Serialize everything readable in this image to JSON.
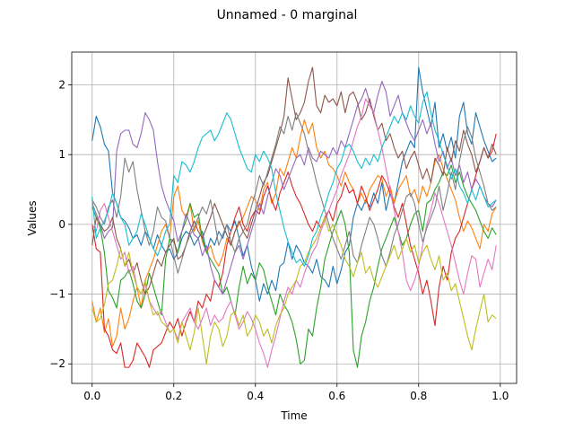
{
  "chart_data": {
    "type": "line",
    "title": "Unnamed - 0 marginal",
    "xlabel": "Time",
    "ylabel": "Values",
    "xlim": [
      -0.05,
      1.04
    ],
    "ylim": [
      -2.28,
      2.47
    ],
    "xticks": [
      0.0,
      0.2,
      0.4,
      0.6,
      0.8,
      1.0
    ],
    "xtick_labels": [
      "0.0",
      "0.2",
      "0.4",
      "0.6",
      "0.8",
      "1.0"
    ],
    "yticks": [
      -2,
      -1,
      0,
      1,
      2
    ],
    "ytick_labels": [
      "−2",
      "−1",
      "0",
      "1",
      "2"
    ],
    "grid": true,
    "x": [
      0.0,
      0.01,
      0.02,
      0.03,
      0.04,
      0.05,
      0.06,
      0.07,
      0.08,
      0.09,
      0.1,
      0.11,
      0.12,
      0.13,
      0.14,
      0.15,
      0.16,
      0.17,
      0.18,
      0.19,
      0.2,
      0.21,
      0.22,
      0.23,
      0.24,
      0.25,
      0.26,
      0.27,
      0.28,
      0.29,
      0.3,
      0.31,
      0.32,
      0.33,
      0.34,
      0.35,
      0.36,
      0.37,
      0.38,
      0.39,
      0.4,
      0.41,
      0.42,
      0.43,
      0.44,
      0.45,
      0.46,
      0.47,
      0.48,
      0.49,
      0.5,
      0.51,
      0.52,
      0.53,
      0.54,
      0.55,
      0.56,
      0.57,
      0.58,
      0.59,
      0.6,
      0.61,
      0.62,
      0.63,
      0.64,
      0.65,
      0.66,
      0.67,
      0.68,
      0.69,
      0.7,
      0.71,
      0.72,
      0.73,
      0.74,
      0.75,
      0.76,
      0.77,
      0.78,
      0.79,
      0.8,
      0.81,
      0.82,
      0.83,
      0.84,
      0.85,
      0.86,
      0.87,
      0.88,
      0.89,
      0.9,
      0.91,
      0.92,
      0.93,
      0.94,
      0.95,
      0.96,
      0.97,
      0.98,
      0.99
    ],
    "series": [
      {
        "color": "#1f77b4",
        "values": [
          1.2,
          1.55,
          1.4,
          1.15,
          1.05,
          0.45,
          0.3,
          0.1,
          0.05,
          -0.05,
          -0.2,
          -0.15,
          -0.3,
          -0.1,
          -0.2,
          -0.35,
          -0.15,
          -0.3,
          -0.4,
          -0.35,
          -0.5,
          -0.4,
          -0.2,
          -0.1,
          -0.15,
          -0.3,
          -0.2,
          -0.1,
          -0.4,
          -0.2,
          -0.3,
          -0.1,
          -0.2,
          0.0,
          -0.1,
          0.05,
          -0.2,
          -0.45,
          -0.3,
          -0.6,
          -0.8,
          -1.1,
          -0.85,
          -1.0,
          -0.8,
          -0.95,
          -0.6,
          -0.55,
          -0.25,
          -0.5,
          -0.3,
          -0.4,
          -0.55,
          -0.6,
          -0.7,
          -0.5,
          -0.75,
          -0.8,
          -0.9,
          -0.6,
          -0.85,
          -0.65,
          -0.4,
          -0.3,
          0.1,
          0.3,
          0.2,
          0.35,
          0.25,
          0.45,
          0.3,
          0.6,
          0.2,
          0.45,
          0.3,
          0.6,
          0.9,
          1.05,
          1.2,
          1.1,
          2.25,
          1.9,
          1.65,
          1.4,
          1.75,
          1.1,
          1.3,
          1.05,
          1.25,
          0.95,
          1.55,
          1.75,
          1.3,
          1.15,
          1.6,
          1.4,
          1.2,
          1.05,
          0.9,
          0.95
        ]
      },
      {
        "color": "#ff7f0e",
        "values": [
          -1.1,
          -1.4,
          -1.2,
          -1.55,
          -1.35,
          -1.75,
          -1.6,
          -1.2,
          -1.5,
          -1.35,
          -1.1,
          -0.9,
          -1.2,
          -0.8,
          -0.65,
          -0.5,
          -0.3,
          -0.1,
          0.0,
          -0.2,
          0.4,
          0.55,
          0.2,
          0.1,
          0.3,
          -0.1,
          0.05,
          -0.25,
          -0.4,
          -0.3,
          -0.5,
          -0.6,
          -0.45,
          -0.2,
          -0.3,
          -0.1,
          0.0,
          0.1,
          0.25,
          0.4,
          0.35,
          0.2,
          0.5,
          0.6,
          0.3,
          0.45,
          0.8,
          0.7,
          0.9,
          1.1,
          0.95,
          1.25,
          1.5,
          1.3,
          1.45,
          1.1,
          0.95,
          1.05,
          0.85,
          0.8,
          0.7,
          0.55,
          0.75,
          0.6,
          0.5,
          0.3,
          0.45,
          0.3,
          0.5,
          0.6,
          0.7,
          0.65,
          0.4,
          0.55,
          0.3,
          0.5,
          0.6,
          0.7,
          0.4,
          0.5,
          0.3,
          0.55,
          0.4,
          0.6,
          0.9,
          1.0,
          0.8,
          0.65,
          0.5,
          0.35,
          0.1,
          -0.1,
          0.05,
          -0.05,
          -0.2,
          -0.35,
          0.0,
          -0.1,
          0.15,
          0.25
        ]
      },
      {
        "color": "#2ca02c",
        "values": [
          0.25,
          0.1,
          -0.05,
          -0.4,
          -0.95,
          -1.05,
          -1.2,
          -0.8,
          -0.75,
          -0.65,
          -0.85,
          -1.1,
          -1.2,
          -1.0,
          -0.7,
          -0.9,
          -1.1,
          -1.3,
          -0.5,
          -0.2,
          -0.25,
          -0.4,
          -0.1,
          0.05,
          0.3,
          0.1,
          0.15,
          -0.2,
          -0.4,
          -0.5,
          -0.6,
          -0.7,
          -1.0,
          -0.9,
          -1.1,
          -1.3,
          -0.9,
          -0.6,
          -0.85,
          -0.7,
          -0.8,
          -0.55,
          -0.65,
          -0.9,
          -1.1,
          -1.3,
          -1.0,
          -1.15,
          -1.25,
          -1.4,
          -1.65,
          -2.0,
          -1.95,
          -1.5,
          -1.6,
          -1.2,
          -0.9,
          -0.5,
          -0.3,
          -0.1,
          0.05,
          0.2,
          0.0,
          -0.4,
          -1.8,
          -2.05,
          -1.6,
          -1.4,
          -1.1,
          -0.9,
          -0.6,
          -0.35,
          -0.2,
          -0.05,
          0.1,
          -0.1,
          -0.3,
          -0.2,
          0.0,
          0.15,
          0.2,
          -0.1,
          0.3,
          0.35,
          0.5,
          0.6,
          0.75,
          0.7,
          0.85,
          0.6,
          0.75,
          0.55,
          0.4,
          0.3,
          0.2,
          0.05,
          -0.1,
          -0.2,
          -0.05,
          -0.15
        ]
      },
      {
        "color": "#d62728",
        "values": [
          0.0,
          -0.35,
          -0.4,
          -1.5,
          -1.6,
          -1.8,
          -1.85,
          -1.7,
          -2.05,
          -2.05,
          -1.95,
          -1.7,
          -1.8,
          -1.9,
          -2.05,
          -1.8,
          -1.75,
          -1.7,
          -1.55,
          -1.4,
          -1.5,
          -1.35,
          -1.6,
          -1.4,
          -1.25,
          -1.4,
          -1.1,
          -1.2,
          -1.0,
          -1.1,
          -0.8,
          -0.9,
          -0.7,
          -0.3,
          -0.1,
          0.1,
          0.25,
          0.0,
          -0.1,
          0.1,
          0.2,
          0.15,
          0.4,
          0.55,
          0.35,
          0.2,
          0.45,
          0.6,
          0.75,
          0.55,
          0.4,
          0.3,
          0.15,
          0.0,
          -0.1,
          0.05,
          -0.05,
          0.1,
          0.2,
          0.05,
          0.3,
          0.4,
          0.6,
          0.45,
          0.5,
          0.3,
          0.55,
          0.4,
          0.2,
          0.35,
          0.5,
          0.7,
          0.6,
          0.45,
          0.25,
          0.1,
          0.3,
          0.0,
          -0.3,
          -0.5,
          -0.7,
          -1.0,
          -0.8,
          -1.1,
          -1.45,
          -0.9,
          -0.6,
          -0.8,
          -0.4,
          -0.2,
          -0.1,
          0.1,
          0.3,
          0.5,
          0.7,
          0.9,
          1.1,
          0.95,
          1.05,
          1.3
        ]
      },
      {
        "color": "#9467bd",
        "values": [
          0.3,
          0.15,
          0.0,
          -0.2,
          -0.1,
          -0.05,
          1.05,
          1.3,
          1.35,
          1.35,
          1.15,
          1.1,
          1.3,
          1.6,
          1.5,
          1.35,
          0.9,
          0.55,
          0.35,
          0.2,
          0.05,
          -0.25,
          -0.1,
          0.15,
          0.0,
          -0.15,
          -0.2,
          -0.45,
          -0.3,
          -0.6,
          -0.8,
          -0.9,
          -1.0,
          -0.8,
          -0.6,
          -0.4,
          -0.3,
          -0.5,
          -0.3,
          -0.1,
          0.1,
          0.3,
          0.15,
          0.4,
          0.6,
          0.8,
          0.7,
          0.5,
          0.65,
          0.8,
          0.95,
          1.0,
          0.85,
          1.1,
          0.95,
          0.9,
          1.05,
          1.0,
          0.95,
          1.1,
          1.0,
          1.2,
          1.1,
          1.3,
          1.5,
          1.7,
          1.8,
          1.95,
          1.75,
          1.6,
          1.85,
          2.05,
          1.9,
          1.55,
          1.7,
          1.85,
          1.6,
          1.45,
          1.3,
          1.2,
          1.35,
          1.5,
          1.3,
          1.45,
          1.15,
          0.9,
          1.05,
          0.8,
          0.95,
          0.7,
          0.85,
          0.6,
          0.75,
          0.5,
          0.65,
          0.55,
          0.4,
          0.3,
          0.25,
          0.35
        ]
      },
      {
        "color": "#8c564b",
        "values": [
          -0.3,
          0.1,
          0.0,
          -0.1,
          -0.05,
          0.1,
          -0.2,
          -0.35,
          -0.6,
          -0.5,
          -0.7,
          -0.55,
          -0.8,
          -1.0,
          -0.9,
          -0.7,
          -0.5,
          -0.6,
          -0.4,
          -0.3,
          -0.2,
          -0.5,
          -0.45,
          -0.3,
          -0.1,
          0.05,
          -0.1,
          -0.2,
          -0.05,
          0.1,
          0.3,
          0.15,
          0.0,
          -0.15,
          -0.3,
          -0.1,
          0.05,
          -0.1,
          -0.2,
          0.0,
          0.2,
          0.4,
          0.6,
          0.7,
          0.9,
          1.1,
          1.3,
          1.55,
          2.1,
          1.8,
          1.5,
          1.6,
          1.75,
          2.05,
          2.25,
          1.7,
          1.6,
          1.85,
          1.75,
          1.8,
          1.7,
          1.9,
          1.6,
          1.85,
          1.9,
          1.75,
          1.5,
          1.6,
          1.8,
          1.55,
          1.35,
          1.45,
          1.2,
          1.3,
          1.1,
          0.95,
          1.05,
          0.8,
          0.95,
          1.05,
          0.85,
          0.65,
          0.8,
          0.6,
          0.95,
          0.85,
          0.7,
          1.1,
          0.9,
          1.2,
          1.05,
          1.35,
          1.15,
          1.0,
          0.75,
          0.9,
          1.1,
          0.95,
          1.15,
          1.0
        ]
      },
      {
        "color": "#e377c2",
        "values": [
          0.0,
          -0.1,
          0.2,
          0.3,
          0.1,
          -0.1,
          -0.3,
          -0.5,
          -0.4,
          -0.7,
          -0.6,
          -0.9,
          -1.0,
          -0.85,
          -1.1,
          -1.2,
          -1.3,
          -1.25,
          -1.4,
          -1.55,
          -1.5,
          -1.65,
          -1.4,
          -1.3,
          -1.2,
          -1.4,
          -1.5,
          -1.35,
          -1.2,
          -1.45,
          -1.3,
          -1.4,
          -1.35,
          -1.2,
          -1.1,
          -1.3,
          -1.5,
          -1.4,
          -1.25,
          -1.35,
          -1.5,
          -1.7,
          -1.85,
          -2.05,
          -1.8,
          -1.6,
          -1.35,
          -1.1,
          -0.9,
          -1.0,
          -0.8,
          -0.9,
          -0.7,
          -0.55,
          -0.4,
          -0.3,
          -0.1,
          0.05,
          0.2,
          0.35,
          0.5,
          0.7,
          0.85,
          1.0,
          1.2,
          1.4,
          1.55,
          1.8,
          1.7,
          1.6,
          1.35,
          1.1,
          0.8,
          0.5,
          0.2,
          -0.1,
          -0.4,
          -0.8,
          -0.95,
          -0.8,
          -0.6,
          -0.3,
          0.0,
          0.2,
          0.45,
          0.3,
          0.1,
          -0.1,
          -0.3,
          -0.55,
          -0.8,
          -1.0,
          -0.7,
          -0.45,
          -0.5,
          -0.9,
          -0.7,
          -0.5,
          -0.65,
          -0.3
        ]
      },
      {
        "color": "#7f7f7f",
        "values": [
          0.35,
          0.25,
          0.1,
          0.0,
          0.25,
          0.35,
          0.1,
          0.4,
          0.95,
          0.75,
          0.9,
          0.5,
          0.2,
          -0.1,
          -0.3,
          -0.1,
          0.25,
          0.1,
          0.05,
          -0.2,
          -0.45,
          -0.7,
          -0.5,
          -0.3,
          -0.15,
          -0.05,
          0.1,
          0.25,
          0.15,
          0.35,
          0.05,
          -0.3,
          -0.15,
          0.0,
          -0.25,
          -0.4,
          -0.2,
          -0.1,
          0.0,
          0.25,
          0.45,
          0.7,
          0.55,
          0.75,
          0.95,
          1.15,
          1.4,
          1.3,
          1.55,
          1.35,
          1.6,
          1.45,
          1.3,
          1.05,
          0.85,
          0.6,
          0.4,
          0.2,
          0.0,
          -0.2,
          -0.35,
          -0.5,
          -0.3,
          -0.1,
          -0.45,
          -0.55,
          -0.3,
          -0.1,
          0.1,
          0.0,
          -0.2,
          -0.45,
          -0.6,
          -0.4,
          -0.15,
          0.0,
          0.2,
          0.4,
          0.45,
          0.3,
          0.0,
          -0.25,
          -0.05,
          0.1,
          0.25,
          0.55,
          0.2,
          0.45,
          0.75,
          0.5,
          0.9,
          1.2,
          1.4,
          1.25,
          0.95,
          0.75,
          0.55,
          0.3,
          0.2,
          0.25
        ]
      },
      {
        "color": "#bcbd22",
        "values": [
          -1.2,
          -1.4,
          -1.35,
          -1.15,
          -0.85,
          -0.8,
          -0.6,
          -0.35,
          -0.6,
          -0.4,
          -0.7,
          -0.9,
          -1.0,
          -0.8,
          -1.1,
          -1.3,
          -1.25,
          -1.4,
          -1.45,
          -1.55,
          -1.5,
          -1.7,
          -1.4,
          -1.6,
          -1.8,
          -1.55,
          -1.2,
          -1.6,
          -2.0,
          -1.6,
          -1.4,
          -1.5,
          -1.75,
          -1.6,
          -1.3,
          -1.25,
          -1.45,
          -1.3,
          -1.6,
          -1.5,
          -1.3,
          -1.4,
          -1.6,
          -1.5,
          -1.7,
          -1.45,
          -1.3,
          -1.2,
          -1.0,
          -0.9,
          -0.8,
          -0.6,
          -0.55,
          -0.4,
          -0.3,
          -0.2,
          -0.05,
          0.1,
          -0.1,
          0.0,
          -0.15,
          -0.3,
          -0.5,
          -0.6,
          -0.75,
          -0.55,
          -0.4,
          -0.7,
          -0.6,
          -0.8,
          -0.9,
          -0.75,
          -0.6,
          -0.45,
          -0.3,
          -0.5,
          -0.35,
          -0.2,
          -0.4,
          -0.3,
          -0.55,
          -0.4,
          -0.3,
          -0.5,
          -0.65,
          -0.45,
          -0.8,
          -0.7,
          -0.95,
          -0.85,
          -1.1,
          -1.35,
          -1.6,
          -1.8,
          -1.5,
          -1.25,
          -1.0,
          -1.4,
          -1.3,
          -1.35
        ]
      },
      {
        "color": "#17becf",
        "values": [
          0.4,
          -0.2,
          -0.05,
          0.05,
          0.2,
          0.45,
          0.3,
          0.1,
          0.0,
          -0.3,
          -0.2,
          -0.1,
          0.15,
          0.0,
          -0.2,
          -0.35,
          -0.45,
          -0.3,
          -0.1,
          0.0,
          0.7,
          0.6,
          0.9,
          0.85,
          0.75,
          0.9,
          1.1,
          1.25,
          1.3,
          1.35,
          1.2,
          1.3,
          1.45,
          1.6,
          1.5,
          1.3,
          1.1,
          0.95,
          0.8,
          0.75,
          1.0,
          0.9,
          1.05,
          0.95,
          0.8,
          0.45,
          0.2,
          -0.05,
          -0.25,
          -0.4,
          -0.55,
          -0.5,
          -0.6,
          -0.45,
          -0.2,
          -0.1,
          0.1,
          0.25,
          0.45,
          0.6,
          0.8,
          0.9,
          1.1,
          1.15,
          1.05,
          0.9,
          0.8,
          0.95,
          0.85,
          1.0,
          0.9,
          1.1,
          1.25,
          1.4,
          1.55,
          1.45,
          1.6,
          1.5,
          1.7,
          1.55,
          1.45,
          1.75,
          1.9,
          1.6,
          1.35,
          1.2,
          1.0,
          0.85,
          0.65,
          0.8,
          0.55,
          0.45,
          0.3,
          0.5,
          0.35,
          0.55,
          0.4,
          0.25,
          0.3,
          0.35
        ]
      }
    ]
  }
}
